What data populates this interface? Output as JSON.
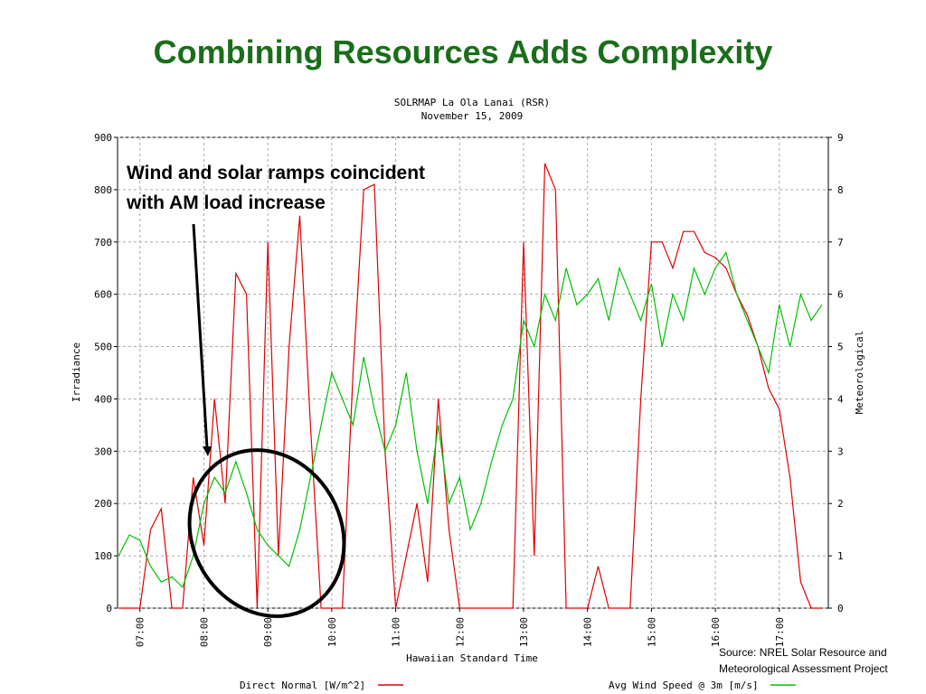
{
  "slide_title": "Combining Resources Adds Complexity",
  "annotation": [
    "Wind and solar ramps coincident",
    "with AM load increase"
  ],
  "source": [
    "Source: NREL Solar Resource and",
    "Meteorological Assessment Project"
  ],
  "chart_data": {
    "type": "line",
    "title": "SOLRMAP La Ola Lanai (RSR)",
    "subtitle": "November 15, 2009",
    "x_label": "Hawaiian Standard Time",
    "y_label": "Irradiance",
    "y2_label": "Meteorological",
    "x": [
      "06:40",
      "06:50",
      "07:00",
      "07:10",
      "07:20",
      "07:30",
      "07:40",
      "07:50",
      "08:00",
      "08:10",
      "08:20",
      "08:30",
      "08:40",
      "08:50",
      "09:00",
      "09:10",
      "09:20",
      "09:30",
      "09:40",
      "09:50",
      "10:00",
      "10:10",
      "10:20",
      "10:30",
      "10:40",
      "10:50",
      "11:00",
      "11:10",
      "11:20",
      "11:30",
      "11:40",
      "11:50",
      "12:00",
      "12:10",
      "12:20",
      "12:30",
      "12:40",
      "12:50",
      "13:00",
      "13:10",
      "13:20",
      "13:30",
      "13:40",
      "13:50",
      "14:00",
      "14:10",
      "14:20",
      "14:30",
      "14:40",
      "14:50",
      "15:00",
      "15:10",
      "15:20",
      "15:30",
      "15:40",
      "15:50",
      "16:00",
      "16:10",
      "16:20",
      "16:30",
      "16:40",
      "16:50",
      "17:00",
      "17:10",
      "17:20",
      "17:30",
      "17:40"
    ],
    "series": [
      {
        "name": "Direct Normal [W/m^2]",
        "color": "#e00000",
        "axis": "y",
        "values": [
          0,
          0,
          0,
          150,
          190,
          0,
          0,
          250,
          120,
          400,
          200,
          640,
          600,
          0,
          700,
          100,
          500,
          750,
          350,
          0,
          0,
          0,
          450,
          800,
          810,
          300,
          0,
          100,
          200,
          50,
          400,
          150,
          0,
          0,
          0,
          0,
          0,
          0,
          700,
          100,
          850,
          800,
          0,
          0,
          0,
          80,
          0,
          0,
          0,
          400,
          700,
          700,
          650,
          720,
          720,
          680,
          670,
          650,
          600,
          560,
          500,
          420,
          380,
          250,
          50,
          0,
          0
        ]
      },
      {
        "name": "Avg Wind Speed @ 3m [m/s]",
        "color": "#00c000",
        "axis": "y2",
        "values": [
          1.0,
          1.4,
          1.3,
          0.8,
          0.5,
          0.6,
          0.4,
          1.0,
          2.0,
          2.5,
          2.2,
          2.8,
          2.2,
          1.5,
          1.2,
          1.0,
          0.8,
          1.5,
          2.5,
          3.5,
          4.5,
          4.0,
          3.5,
          4.8,
          3.8,
          3.0,
          3.5,
          4.5,
          3.0,
          2.0,
          3.5,
          2.0,
          2.5,
          1.5,
          2.0,
          2.8,
          3.5,
          4.0,
          5.5,
          5.0,
          6.0,
          5.5,
          6.5,
          5.8,
          6.0,
          6.3,
          5.5,
          6.5,
          6.0,
          5.5,
          6.2,
          5.0,
          6.0,
          5.5,
          6.5,
          6.0,
          6.5,
          6.8,
          6.0,
          5.5,
          5.0,
          4.5,
          5.8,
          5.0,
          6.0,
          5.5,
          5.8
        ]
      }
    ],
    "xlim": [
      "06:39",
      "17:46"
    ],
    "xticks": [
      "07:00",
      "08:00",
      "09:00",
      "10:00",
      "11:00",
      "12:00",
      "13:00",
      "14:00",
      "15:00",
      "16:00",
      "17:00"
    ],
    "ylim": [
      0,
      900
    ],
    "yticks": [
      0,
      100,
      200,
      300,
      400,
      500,
      600,
      700,
      800,
      900
    ],
    "y2lim": [
      0,
      9
    ],
    "y2ticks": [
      0,
      1,
      2,
      3,
      4,
      5,
      6,
      7,
      8,
      9
    ],
    "grid": true
  }
}
